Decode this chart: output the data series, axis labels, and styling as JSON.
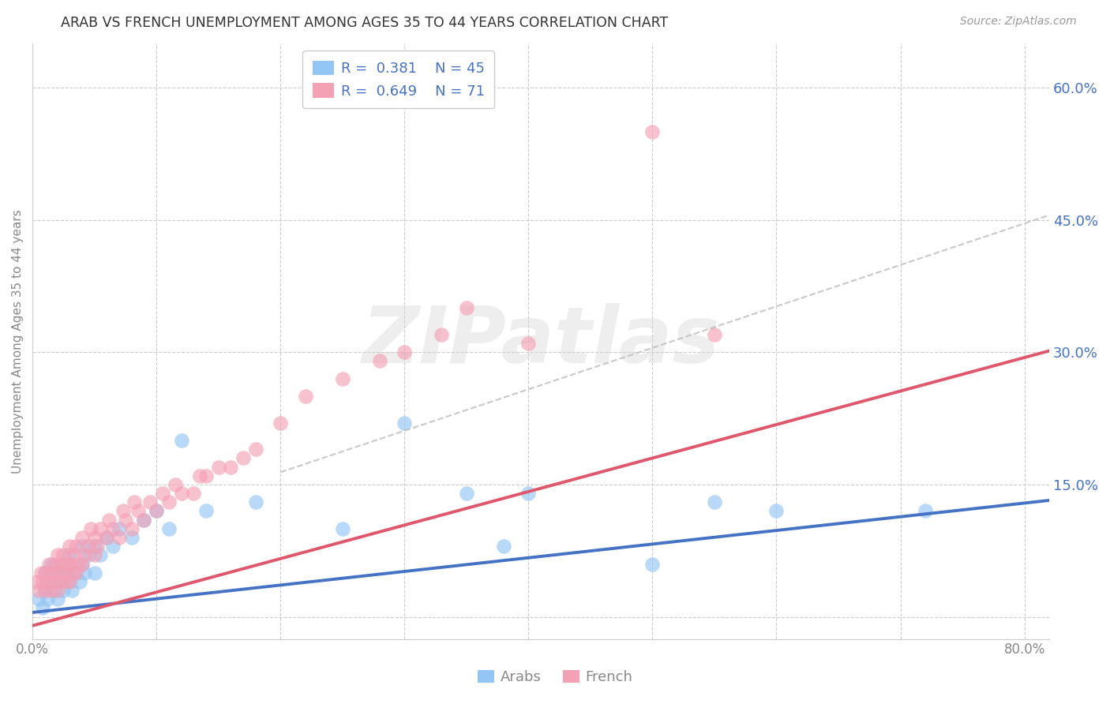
{
  "title": "ARAB VS FRENCH UNEMPLOYMENT AMONG AGES 35 TO 44 YEARS CORRELATION CHART",
  "source": "Source: ZipAtlas.com",
  "ylabel": "Unemployment Among Ages 35 to 44 years",
  "xlim": [
    0.0,
    0.82
  ],
  "ylim": [
    -0.025,
    0.65
  ],
  "right_yticks": [
    0.0,
    0.15,
    0.3,
    0.45,
    0.6
  ],
  "right_ytick_labels": [
    "",
    "15.0%",
    "30.0%",
    "45.0%",
    "60.0%"
  ],
  "xticks": [
    0.0,
    0.1,
    0.2,
    0.3,
    0.4,
    0.5,
    0.6,
    0.7,
    0.8
  ],
  "background_color": "#ffffff",
  "grid_color": "#cccccc",
  "arab_scatter_color": "#93C6F4",
  "french_scatter_color": "#F4A0B5",
  "arab_line_color": "#4472C4",
  "french_line_color": "#E0566A",
  "dashed_line_color": "#bbbbbb",
  "right_tick_color": "#4472C4",
  "title_color": "#333333",
  "source_color": "#999999",
  "axis_color": "#888888",
  "arab_R": "0.381",
  "arab_N": "45",
  "french_R": "0.649",
  "french_N": "71",
  "watermark_text": "ZIPatlas",
  "arab_line_slope": 0.155,
  "arab_line_intercept": 0.005,
  "french_line_slope": 0.38,
  "french_line_intercept": -0.01,
  "dashed_line_slope": 0.47,
  "dashed_line_intercept": 0.07,
  "dashed_line_xstart": 0.2,
  "arab_scatter_x": [
    0.005,
    0.008,
    0.01,
    0.01,
    0.012,
    0.015,
    0.015,
    0.018,
    0.02,
    0.02,
    0.022,
    0.025,
    0.025,
    0.028,
    0.03,
    0.03,
    0.032,
    0.035,
    0.038,
    0.04,
    0.04,
    0.042,
    0.045,
    0.05,
    0.05,
    0.055,
    0.06,
    0.065,
    0.07,
    0.08,
    0.09,
    0.1,
    0.11,
    0.12,
    0.14,
    0.18,
    0.25,
    0.3,
    0.35,
    0.4,
    0.5,
    0.55,
    0.6,
    0.72,
    0.38
  ],
  "arab_scatter_y": [
    0.02,
    0.01,
    0.03,
    0.05,
    0.02,
    0.04,
    0.06,
    0.03,
    0.02,
    0.05,
    0.04,
    0.03,
    0.06,
    0.05,
    0.04,
    0.07,
    0.03,
    0.05,
    0.04,
    0.06,
    0.08,
    0.05,
    0.07,
    0.05,
    0.08,
    0.07,
    0.09,
    0.08,
    0.1,
    0.09,
    0.11,
    0.12,
    0.1,
    0.2,
    0.12,
    0.13,
    0.1,
    0.22,
    0.14,
    0.14,
    0.06,
    0.13,
    0.12,
    0.12,
    0.08
  ],
  "french_scatter_x": [
    0.003,
    0.005,
    0.007,
    0.008,
    0.01,
    0.01,
    0.012,
    0.013,
    0.015,
    0.015,
    0.017,
    0.018,
    0.02,
    0.02,
    0.02,
    0.022,
    0.024,
    0.025,
    0.025,
    0.027,
    0.028,
    0.03,
    0.03,
    0.03,
    0.032,
    0.033,
    0.035,
    0.035,
    0.037,
    0.04,
    0.04,
    0.042,
    0.045,
    0.047,
    0.05,
    0.05,
    0.052,
    0.055,
    0.06,
    0.062,
    0.065,
    0.07,
    0.073,
    0.075,
    0.08,
    0.082,
    0.085,
    0.09,
    0.095,
    0.1,
    0.105,
    0.11,
    0.115,
    0.12,
    0.13,
    0.135,
    0.14,
    0.15,
    0.16,
    0.17,
    0.18,
    0.2,
    0.22,
    0.25,
    0.28,
    0.3,
    0.33,
    0.35,
    0.4,
    0.5,
    0.55
  ],
  "french_scatter_y": [
    0.04,
    0.03,
    0.05,
    0.04,
    0.03,
    0.05,
    0.04,
    0.06,
    0.03,
    0.05,
    0.04,
    0.06,
    0.03,
    0.05,
    0.07,
    0.04,
    0.06,
    0.05,
    0.07,
    0.04,
    0.06,
    0.04,
    0.06,
    0.08,
    0.05,
    0.07,
    0.05,
    0.08,
    0.06,
    0.06,
    0.09,
    0.07,
    0.08,
    0.1,
    0.07,
    0.09,
    0.08,
    0.1,
    0.09,
    0.11,
    0.1,
    0.09,
    0.12,
    0.11,
    0.1,
    0.13,
    0.12,
    0.11,
    0.13,
    0.12,
    0.14,
    0.13,
    0.15,
    0.14,
    0.14,
    0.16,
    0.16,
    0.17,
    0.17,
    0.18,
    0.19,
    0.22,
    0.25,
    0.27,
    0.29,
    0.3,
    0.32,
    0.35,
    0.31,
    0.55,
    0.32
  ]
}
